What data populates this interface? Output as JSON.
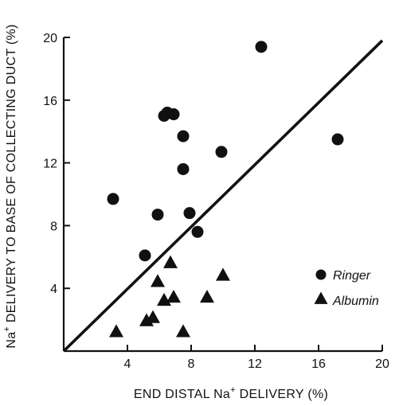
{
  "chart_data": {
    "type": "scatter",
    "title": "",
    "xlabel_parts": [
      "END DISTAL Na",
      "+",
      " DELIVERY (%)"
    ],
    "ylabel_parts": [
      "Na",
      "+",
      " DELIVERY TO BASE OF COLLECTING DUCT (%)"
    ],
    "xlim": [
      0,
      20
    ],
    "ylim": [
      0,
      20
    ],
    "x_ticks": [
      4,
      8,
      12,
      16,
      20
    ],
    "y_ticks": [
      4,
      8,
      12,
      16,
      20
    ],
    "grid": false,
    "legend_placement": "lower-right",
    "series": [
      {
        "name": "Ringer",
        "marker": "circle",
        "color": "#111111",
        "points": [
          [
            3.1,
            9.7
          ],
          [
            5.1,
            6.1
          ],
          [
            5.9,
            8.7
          ],
          [
            6.3,
            15.0
          ],
          [
            6.5,
            15.2
          ],
          [
            6.9,
            15.1
          ],
          [
            7.5,
            13.7
          ],
          [
            7.5,
            11.6
          ],
          [
            7.9,
            8.8
          ],
          [
            8.4,
            7.6
          ],
          [
            9.9,
            12.7
          ],
          [
            12.4,
            19.4
          ],
          [
            17.2,
            13.5
          ]
        ]
      },
      {
        "name": "Albumin",
        "marker": "triangle",
        "color": "#111111",
        "points": [
          [
            3.3,
            1.2
          ],
          [
            5.2,
            1.9
          ],
          [
            5.6,
            2.1
          ],
          [
            5.9,
            4.4
          ],
          [
            6.3,
            3.2
          ],
          [
            6.7,
            5.6
          ],
          [
            6.9,
            3.4
          ],
          [
            7.5,
            1.2
          ],
          [
            9.0,
            3.4
          ],
          [
            10.0,
            4.8
          ]
        ]
      }
    ],
    "fit_line": {
      "from": [
        0,
        0
      ],
      "to": [
        20,
        19.8
      ]
    }
  }
}
